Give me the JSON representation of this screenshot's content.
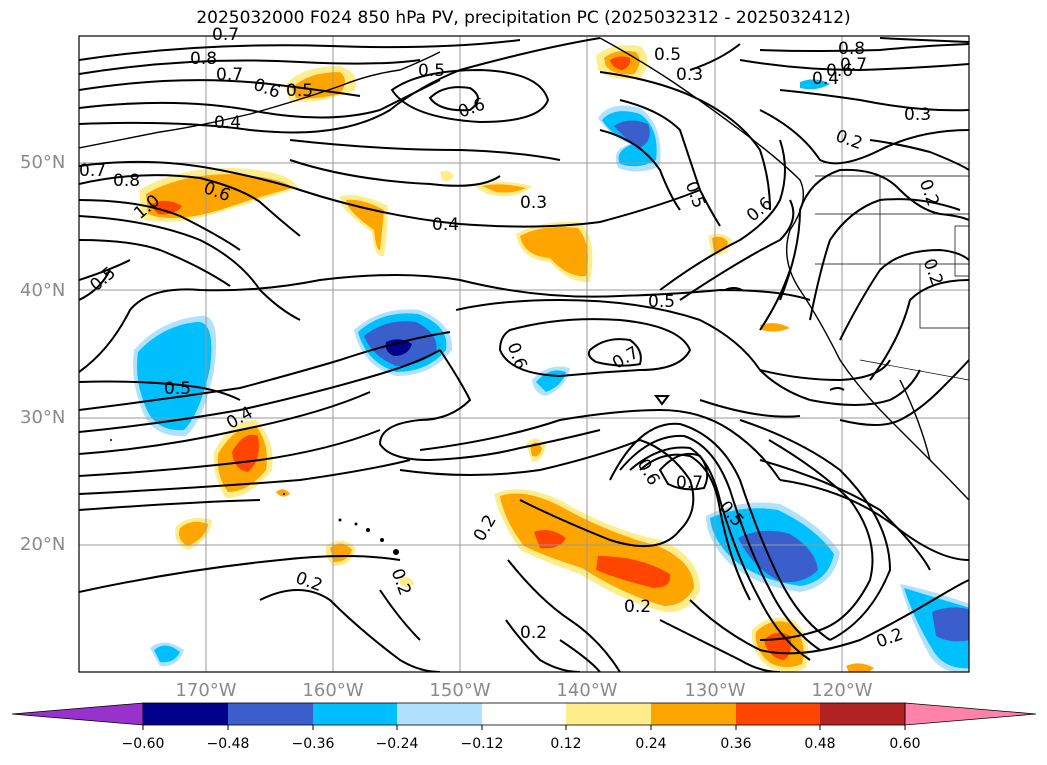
{
  "title": "2025032000 F024 850 hPa PV, precipitation PC (2025032312 - 2025032412)",
  "lat_labels": [
    "50°N",
    "40°N",
    "30°N",
    "20°N"
  ],
  "lon_labels": [
    "170°W",
    "160°W",
    "150°W",
    "140°W",
    "130°W",
    "120°W"
  ],
  "colorbar": {
    "ticks": [
      "−0.60",
      "−0.48",
      "−0.36",
      "−0.24",
      "−0.12",
      "0.12",
      "0.24",
      "0.36",
      "0.48",
      "0.60"
    ],
    "colors": [
      "#9932CC",
      "#00008B",
      "#3A5FCD",
      "#00BFFF",
      "#B0E2FF",
      "#FFFFFF",
      "#FFEC8B",
      "#FFA500",
      "#FF4500",
      "#B22222",
      "#FF82AB"
    ]
  },
  "contour_labels": [
    "1.0",
    "0.8",
    "0.7",
    "0.6",
    "0.5",
    "0.4",
    "0.8",
    "0.7",
    "0.6",
    "0.5",
    "0.6",
    "0.5",
    "0.3",
    "0.4",
    "0.5",
    "0.5",
    "0.6",
    "0.7",
    "0.4",
    "0.5",
    "0.2",
    "0.6",
    "0.7",
    "0.5",
    "0.6",
    "0.2",
    "0.2",
    "0.2",
    "0.2",
    "0.2",
    "0.8",
    "0.7",
    "0.6",
    "0.4",
    "0.3",
    "0.2",
    "0.2",
    "0.2",
    "0.7",
    "0.5",
    "0.3",
    "0.7"
  ]
}
